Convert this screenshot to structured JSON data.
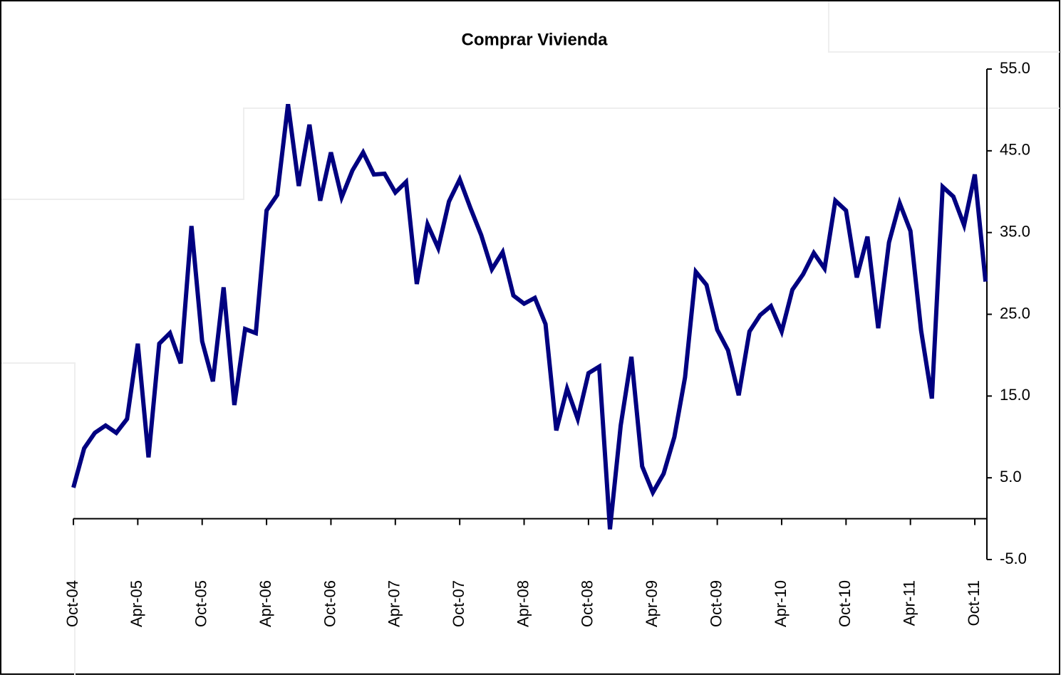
{
  "chart_data": {
    "type": "line",
    "title": "Comprar Vivienda",
    "categories": [
      "Oct-04",
      null,
      null,
      null,
      null,
      null,
      "Apr-05",
      null,
      null,
      null,
      null,
      null,
      "Oct-05",
      null,
      null,
      null,
      null,
      null,
      "Apr-06",
      null,
      null,
      null,
      null,
      null,
      "Oct-06",
      null,
      null,
      null,
      null,
      null,
      "Apr-07",
      null,
      null,
      null,
      null,
      null,
      "Oct-07",
      null,
      null,
      null,
      null,
      null,
      "Apr-08",
      null,
      null,
      null,
      null,
      null,
      "Oct-08",
      null,
      null,
      null,
      null,
      null,
      "Apr-09",
      null,
      null,
      null,
      null,
      null,
      "Oct-09",
      null,
      null,
      null,
      null,
      null,
      "Apr-10",
      null,
      null,
      null,
      null,
      null,
      "Oct-10",
      null,
      null,
      null,
      null,
      null,
      "Apr-11",
      null,
      null,
      null,
      null,
      null,
      "Oct-11",
      null
    ],
    "series": [
      {
        "color": "#000080",
        "values": [
          3.8,
          8.6,
          10.5,
          11.4,
          10.5,
          12.2,
          21.4,
          7.5,
          21.4,
          22.7,
          19,
          35.8,
          21.7,
          16.8,
          28.3,
          13.9,
          23.2,
          22.7,
          37.7,
          39.6,
          50.7,
          40.7,
          48.2,
          38.9,
          44.8,
          39.3,
          42.6,
          44.8,
          42.1,
          42.2,
          39.9,
          41.2,
          28.7,
          36,
          33.1,
          38.8,
          41.5,
          38,
          34.7,
          30.5,
          32.6,
          27.3,
          26.3,
          27,
          23.8,
          10.8,
          15.9,
          12.2,
          17.8,
          18.6,
          -1.3,
          11.4,
          19.8,
          6.4,
          3.2,
          5.5,
          10,
          17.3,
          30.2,
          28.6,
          23.1,
          20.6,
          15.1,
          22.9,
          24.9,
          26,
          22.9,
          28,
          29.9,
          32.5,
          30.6,
          38.9,
          37.7,
          29.5,
          34.5,
          23.3,
          33.8,
          38.6,
          35.2,
          23,
          14.7,
          40.6,
          39.4,
          35.9,
          42.1,
          29
        ]
      }
    ],
    "ylim": [
      -5,
      55
    ],
    "yticks": [
      {
        "value": -5,
        "label": "-5.0"
      },
      {
        "value": 5,
        "label": "5.0"
      },
      {
        "value": 15,
        "label": "15.0"
      },
      {
        "value": 25,
        "label": "25.0"
      },
      {
        "value": 35,
        "label": "35.0"
      },
      {
        "value": 45,
        "label": "45.0"
      },
      {
        "value": 55,
        "label": "55.0"
      }
    ],
    "y_axis_side": "right"
  }
}
